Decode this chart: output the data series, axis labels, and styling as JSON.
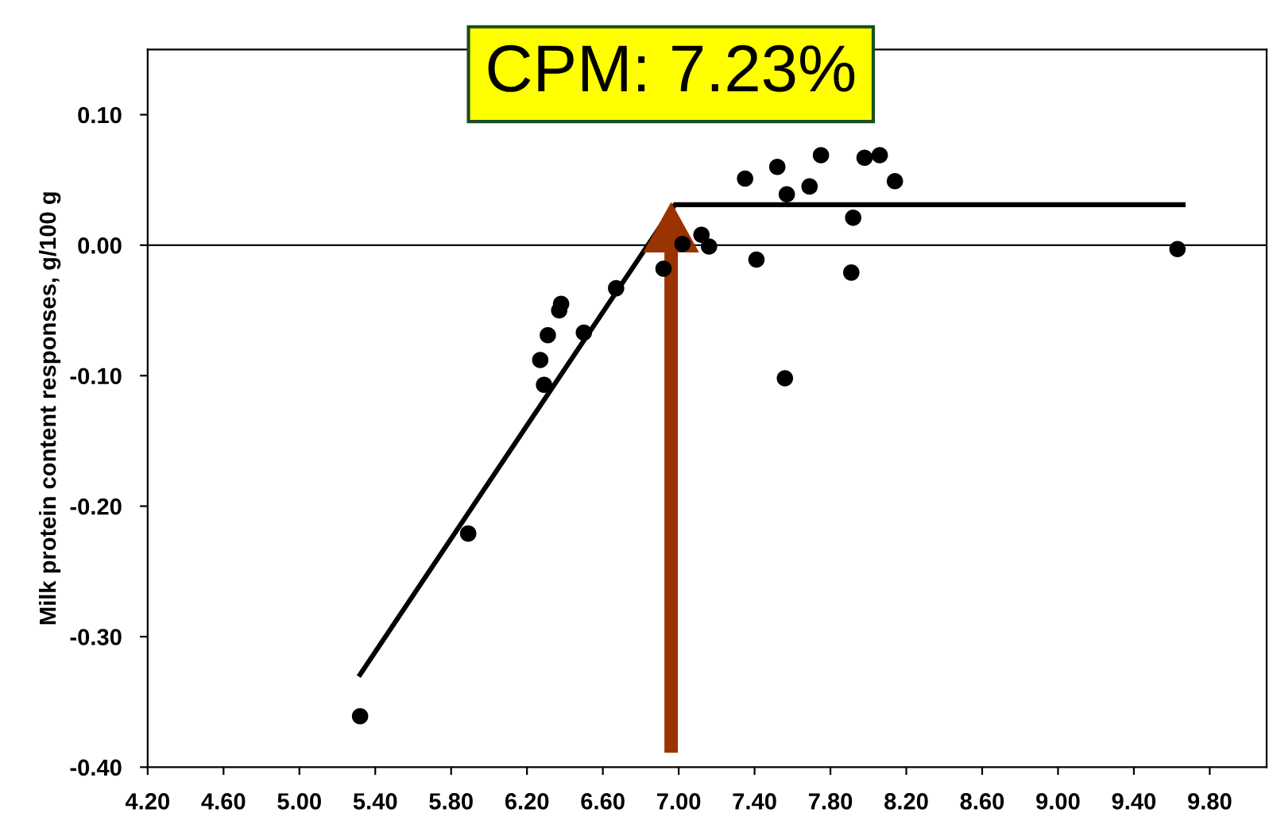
{
  "chart_data": {
    "type": "scatter",
    "ylabel": "Milk protein content responses, g/100 g",
    "annotations": [
      {
        "text": "CPM: 7.23%",
        "x": 6.96,
        "y": 0.033
      }
    ],
    "series": [
      {
        "color": "#000000",
        "marker": "circle",
        "x": [
          5.32,
          5.89,
          6.29,
          6.27,
          6.31,
          6.37,
          6.38,
          6.5,
          6.67,
          6.92,
          7.02,
          7.12,
          7.16,
          7.35,
          7.41,
          7.52,
          7.57,
          7.56,
          7.69,
          7.75,
          7.92,
          7.91,
          7.98,
          8.06,
          8.14,
          9.63
        ],
        "values": [
          -0.361,
          -0.221,
          -0.107,
          -0.088,
          -0.069,
          -0.05,
          -0.045,
          -0.067,
          -0.033,
          -0.018,
          0.001,
          0.008,
          -0.001,
          0.051,
          -0.011,
          0.06,
          0.039,
          -0.102,
          0.045,
          0.069,
          0.021,
          -0.021,
          0.067,
          0.069,
          0.049,
          -0.003
        ]
      },
      {
        "type": "line",
        "color": "#000000",
        "marker": "none",
        "line_style": "solid",
        "x": [
          5.32,
          6.98,
          9.66
        ],
        "values": [
          -0.329,
          0.031,
          0.031
        ]
      }
    ],
    "ref_lines": [
      {
        "axis": "y",
        "value": 0,
        "color": "#000000"
      }
    ],
    "xlim": [
      4.2,
      10.1
    ],
    "xticks": [
      {
        "value": 4.2,
        "label": "4.20"
      },
      {
        "value": 4.6,
        "label": "4.60"
      },
      {
        "value": 5.0,
        "label": "5.00"
      },
      {
        "value": 5.4,
        "label": "5.40"
      },
      {
        "value": 5.8,
        "label": "5.80"
      },
      {
        "value": 6.2,
        "label": "6.20"
      },
      {
        "value": 6.6,
        "label": "6.60"
      },
      {
        "value": 7.0,
        "label": "7.00"
      },
      {
        "value": 7.4,
        "label": "7.40"
      },
      {
        "value": 7.8,
        "label": "7.80"
      },
      {
        "value": 8.2,
        "label": "8.20"
      },
      {
        "value": 8.6,
        "label": "8.60"
      },
      {
        "value": 9.0,
        "label": "9.00"
      },
      {
        "value": 9.4,
        "label": "9.40"
      },
      {
        "value": 9.8,
        "label": "9.80"
      }
    ],
    "ylim": [
      -0.4,
      0.15
    ],
    "yticks": [
      {
        "value": -0.4,
        "label": "-0.40"
      },
      {
        "value": -0.3,
        "label": "-0.30"
      },
      {
        "value": -0.2,
        "label": "-0.20"
      },
      {
        "value": -0.1,
        "label": "-0.10"
      },
      {
        "value": 0,
        "label": "0.00"
      },
      {
        "value": 0.1,
        "label": "0.10"
      }
    ],
    "grid": false,
    "legend": false
  }
}
